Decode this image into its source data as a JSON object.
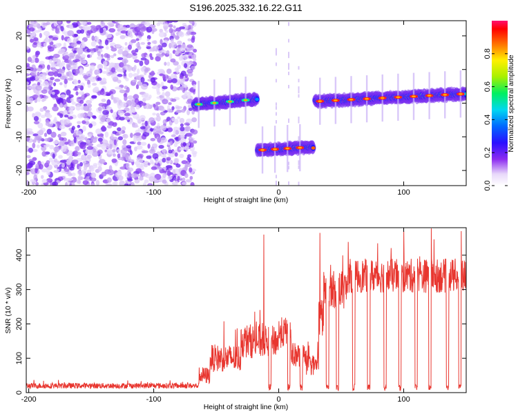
{
  "title": "S196.2025.332.16.22.G11",
  "chart_data": [
    {
      "type": "heatmap",
      "name": "spectrogram",
      "xlabel": "Height of straight line (km)",
      "ylabel": "Frequency (Hz)",
      "xlim": [
        -202,
        150
      ],
      "ylim": [
        -24.5,
        24.5
      ],
      "xticks": [
        -200,
        -100,
        0,
        100
      ],
      "yticks": [
        20,
        10,
        0,
        -10,
        -20
      ],
      "noise_region_x": [
        -202,
        -67
      ],
      "tracks": [
        {
          "x_start": -68,
          "x_end": -17,
          "freq_start": -0.5,
          "freq_end": 1.2
        },
        {
          "x_start": -17,
          "x_end": 28,
          "freq_start": -14,
          "freq_end": -13
        },
        {
          "x_start": 29,
          "x_end": 150,
          "freq_start": 0.5,
          "freq_end": 2.8
        }
      ],
      "colorbar": {
        "label": "Normalized spectral amplitude",
        "range": [
          0,
          1
        ],
        "ticks": [
          0.0,
          0.2,
          0.4,
          0.6,
          0.8
        ]
      }
    },
    {
      "type": "line",
      "name": "snr",
      "xlabel": "Height of straight line (km)",
      "ylabel": "SNR (10 * v/v)",
      "xlim": [
        -202,
        150
      ],
      "ylim": [
        0,
        480
      ],
      "xticks": [
        -200,
        -100,
        0,
        100
      ],
      "yticks": [
        0,
        100,
        200,
        300,
        400
      ],
      "color": "#e8362f",
      "segments": [
        {
          "x_start": -202,
          "x_end": -64,
          "level": 20,
          "noise": 8
        },
        {
          "x_start": -64,
          "x_end": -55,
          "level": 50,
          "noise": 25
        },
        {
          "x_start": -55,
          "x_end": -30,
          "level": 100,
          "noise": 40
        },
        {
          "x_start": -30,
          "x_end": -12,
          "level": 150,
          "noise": 50
        },
        {
          "x_start": -12,
          "x_end": 0,
          "level": 150,
          "noise": 45
        },
        {
          "x_start": 0,
          "x_end": 10,
          "level": 175,
          "noise": 45
        },
        {
          "x_start": 10,
          "x_end": 22,
          "level": 110,
          "noise": 35
        },
        {
          "x_start": 22,
          "x_end": 32,
          "level": 80,
          "noise": 30
        },
        {
          "x_start": 32,
          "x_end": 36,
          "level": 220,
          "noise": 60
        },
        {
          "x_start": 36,
          "x_end": 55,
          "level": 300,
          "noise": 55
        },
        {
          "x_start": 55,
          "x_end": 150,
          "level": 340,
          "noise": 50
        }
      ],
      "spikes": [
        {
          "x": -12,
          "y": 460
        },
        {
          "x": 33,
          "y": 465
        },
        {
          "x": 100,
          "y": 470
        },
        {
          "x": 122,
          "y": 478
        },
        {
          "x": 146,
          "y": 470
        }
      ],
      "dropouts": [
        -7,
        8,
        18,
        39,
        47,
        60,
        72,
        85,
        97,
        110,
        121,
        135,
        145
      ]
    }
  ]
}
